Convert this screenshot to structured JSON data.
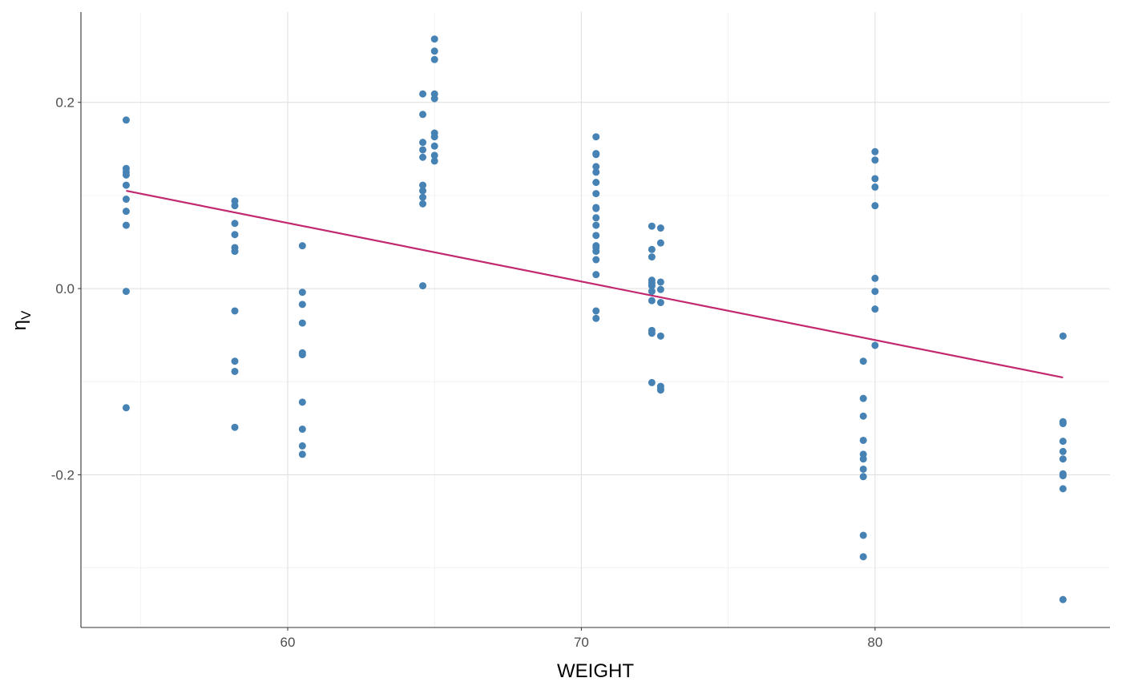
{
  "chart_data": {
    "type": "scatter",
    "title": "",
    "xlabel": "WEIGHT",
    "ylabel": "ηV",
    "ylabel_main": "η",
    "ylabel_sub": "V",
    "xlim": [
      52.96,
      88.0
    ],
    "ylim": [
      -0.364,
      0.297
    ],
    "xticks": [
      60,
      70,
      80
    ],
    "xtick_labels": [
      "60",
      "70",
      "80"
    ],
    "yticks": [
      -0.2,
      0.0,
      0.2
    ],
    "ytick_labels": [
      "-0.2",
      "0.0",
      "0.2"
    ],
    "x_minor_grid": [
      55,
      65,
      75,
      85
    ],
    "y_minor_grid": [
      -0.3,
      -0.1,
      0.1
    ],
    "grid": true,
    "point_color": "#4682B4",
    "line_color": "#C2286F",
    "groups": [
      {
        "x": 54.5,
        "y": [
          0.181,
          0.129,
          0.125,
          0.122,
          0.111,
          0.096,
          0.083,
          0.068,
          -0.003,
          -0.128
        ]
      },
      {
        "x": 58.2,
        "y": [
          0.094,
          0.089,
          0.07,
          0.058,
          0.044,
          0.04,
          -0.024,
          -0.078,
          -0.089,
          -0.149
        ]
      },
      {
        "x": 60.5,
        "y": [
          0.046,
          -0.004,
          -0.017,
          -0.037,
          -0.069,
          -0.071,
          -0.122,
          -0.151,
          -0.169,
          -0.178
        ]
      },
      {
        "x": 64.6,
        "y": [
          0.209,
          0.187,
          0.157,
          0.149,
          0.141,
          0.111,
          0.105,
          0.098,
          0.091,
          0.003
        ]
      },
      {
        "x": 65.0,
        "y": [
          0.268,
          0.255,
          0.246,
          0.209,
          0.204,
          0.167,
          0.163,
          0.153,
          0.143,
          0.137
        ]
      },
      {
        "x": 70.5,
        "y": [
          0.163,
          0.145,
          0.144,
          0.131,
          0.125,
          0.114,
          0.102,
          0.087,
          0.086,
          0.076,
          0.068,
          0.057,
          0.046,
          0.044,
          0.04,
          0.031,
          0.015,
          -0.024,
          -0.032
        ]
      },
      {
        "x": 72.4,
        "y": [
          0.067,
          0.042,
          0.034,
          0.009,
          0.006,
          0.003,
          -0.003,
          -0.013,
          -0.045,
          -0.048,
          -0.101
        ]
      },
      {
        "x": 72.7,
        "y": [
          0.065,
          0.049,
          0.007,
          -0.001,
          -0.015,
          -0.051,
          -0.105,
          -0.108,
          -0.109
        ]
      },
      {
        "x": 79.6,
        "y": [
          -0.078,
          -0.118,
          -0.137,
          -0.163,
          -0.178,
          -0.183,
          -0.194,
          -0.202,
          -0.265,
          -0.288
        ]
      },
      {
        "x": 80.0,
        "y": [
          0.147,
          0.138,
          0.118,
          0.109,
          0.089,
          0.011,
          -0.003,
          -0.022,
          -0.061
        ]
      },
      {
        "x": 86.4,
        "y": [
          -0.051,
          -0.143,
          -0.145,
          -0.164,
          -0.175,
          -0.183,
          -0.199,
          -0.201,
          -0.215,
          -0.334
        ]
      }
    ],
    "trend_line": {
      "x": [
        54.5,
        86.4
      ],
      "y": [
        0.105,
        -0.0955
      ]
    }
  }
}
